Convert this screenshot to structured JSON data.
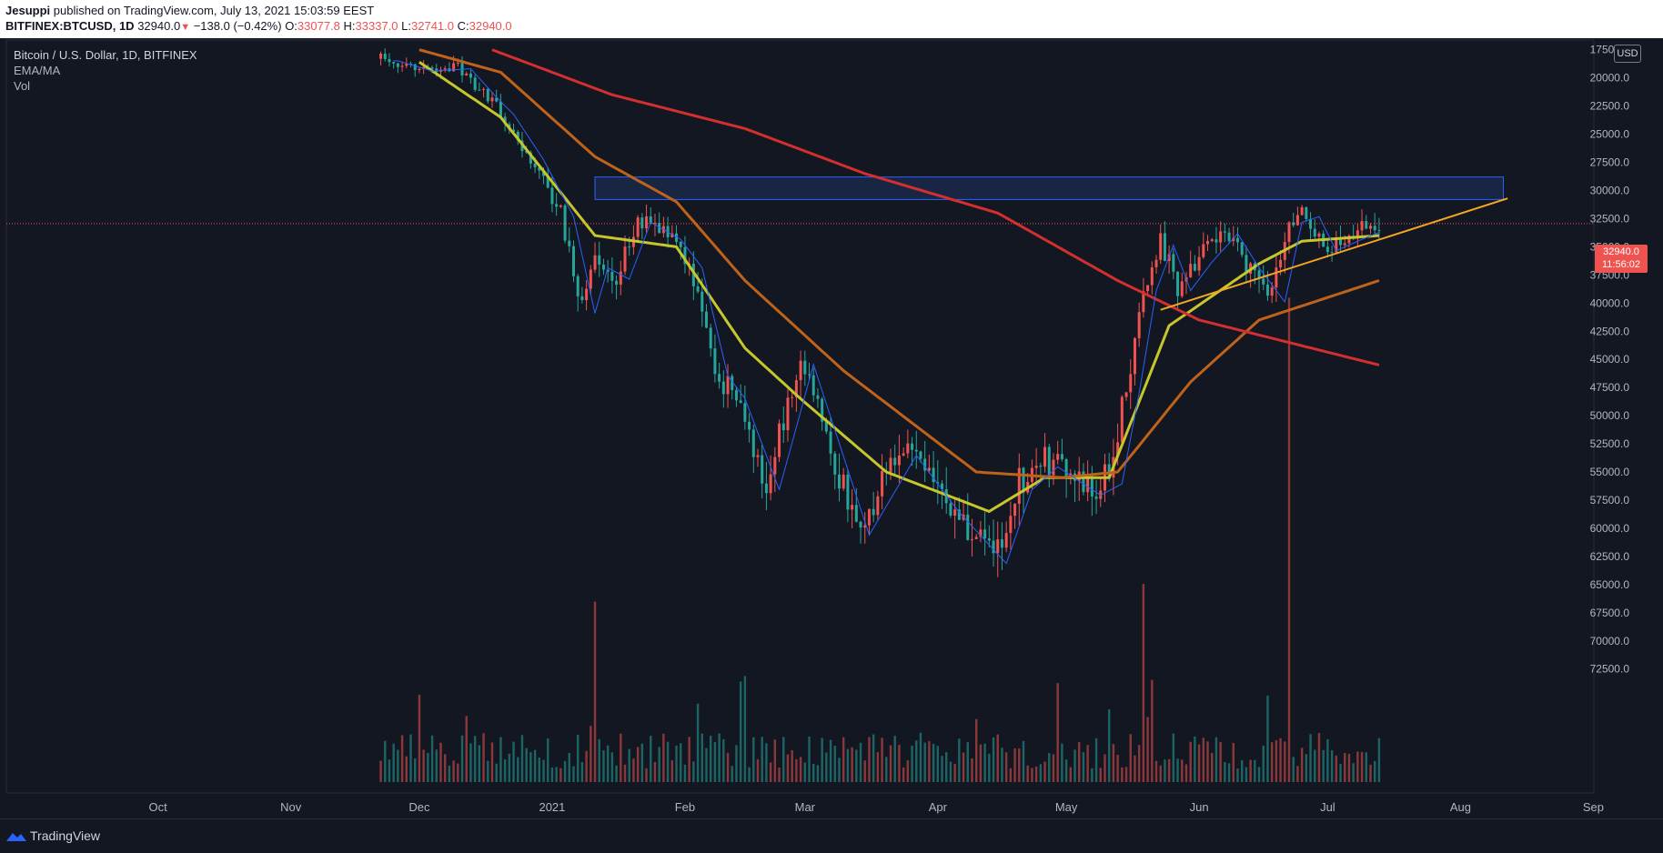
{
  "header": {
    "author": "Jesuppi",
    "published_text": "published on TradingView.com, July 13, 2021 15:03:59 EEST",
    "symbol": "BITFINEX:BTCUSD, 1D",
    "last_price": "32940.0",
    "change_text": "−138.0 (−0.42%)",
    "o_label": "O:",
    "o_value": "33077.8",
    "h_label": "H:",
    "h_value": "33337.0",
    "l_label": "L:",
    "l_value": "32741.0",
    "c_label": "C:",
    "c_value": "32940.0"
  },
  "legend": {
    "title": "Bitcoin / U.S. Dollar, 1D, BITFINEX",
    "indicator_1": "EMA/MA",
    "indicator_2": "Vol"
  },
  "axis": {
    "currency_badge": "USD"
  },
  "price_tag": {
    "price": "32940.0",
    "countdown": "11:56:02"
  },
  "footer": {
    "brand": "TradingView"
  },
  "colors": {
    "background": "#131722",
    "up": "#26a69a",
    "down": "#ef5350",
    "ema_fast": "#2962ff",
    "ema_yellow": "#c6c72b",
    "ma_orange": "#c0631a",
    "ma_red": "#d32f2f",
    "trendline": "#f6a623",
    "zone": "#1e3a6e"
  },
  "chart_data": {
    "type": "candlestick",
    "axis_inverted": true,
    "price_axis_ticks": [
      17500,
      20000,
      22500,
      25000,
      27500,
      30000,
      32500,
      35000,
      37500,
      40000,
      42500,
      45000,
      47500,
      50000,
      52500,
      55000,
      57500,
      60000,
      62500,
      65000,
      67500,
      70000,
      72500
    ],
    "ylim_top_to_bottom": [
      17200,
      74300
    ],
    "x_labels": [
      "Oct",
      "Nov",
      "Dec",
      "2021",
      "Feb",
      "Mar",
      "Apr",
      "May",
      "Jun",
      "Jul",
      "Aug",
      "Sep"
    ],
    "close_path": [
      [
        "2020-11-23",
        18300
      ],
      [
        "2020-12-01",
        19200
      ],
      [
        "2020-12-10",
        19000
      ],
      [
        "2020-12-16",
        21500
      ],
      [
        "2020-12-20",
        23000
      ],
      [
        "2020-12-27",
        27000
      ],
      [
        "2021-01-03",
        32000
      ],
      [
        "2021-01-08",
        40500
      ],
      [
        "2021-01-11",
        36500
      ],
      [
        "2021-01-16",
        37500
      ],
      [
        "2021-01-21",
        32500
      ],
      [
        "2021-01-28",
        34000
      ],
      [
        "2021-02-02",
        36500
      ],
      [
        "2021-02-08",
        46000
      ],
      [
        "2021-02-12",
        48000
      ],
      [
        "2021-02-20",
        56000
      ],
      [
        "2021-02-28",
        45000
      ],
      [
        "2021-03-13",
        60000
      ],
      [
        "2021-03-24",
        53000
      ],
      [
        "2021-04-03",
        58000
      ],
      [
        "2021-04-14",
        62500
      ],
      [
        "2021-04-20",
        56000
      ],
      [
        "2021-04-26",
        54000
      ],
      [
        "2021-05-06",
        56500
      ],
      [
        "2021-05-11",
        55500
      ],
      [
        "2021-05-15",
        47500
      ],
      [
        "2021-05-19",
        38500
      ],
      [
        "2021-05-23",
        34500
      ],
      [
        "2021-05-27",
        38500
      ],
      [
        "2021-06-01",
        36000
      ],
      [
        "2021-06-07",
        33500
      ],
      [
        "2021-06-12",
        36500
      ],
      [
        "2021-06-18",
        39500
      ],
      [
        "2021-06-22",
        32500
      ],
      [
        "2021-06-26",
        32000
      ],
      [
        "2021-06-30",
        35000
      ],
      [
        "2021-07-06",
        34000
      ],
      [
        "2021-07-13",
        32940
      ]
    ],
    "volume_peaks": [
      [
        "2021-01-11",
        67000
      ],
      [
        "2021-05-19",
        70000
      ],
      [
        "2021-06-22",
        40000
      ]
    ],
    "moving_averages": [
      {
        "points": [
          [
            "2020-12-01",
            18600
          ],
          [
            "2020-12-20",
            23500
          ],
          [
            "2021-01-11",
            34000
          ],
          [
            "2021-01-30",
            35000
          ],
          [
            "2021-02-15",
            44000
          ],
          [
            "2021-02-28",
            48500
          ],
          [
            "2021-03-20",
            55000
          ],
          [
            "2021-04-13",
            58500
          ],
          [
            "2021-04-26",
            55500
          ],
          [
            "2021-05-11",
            55500
          ],
          [
            "2021-05-25",
            42000
          ],
          [
            "2021-06-15",
            36500
          ],
          [
            "2021-06-25",
            34500
          ],
          [
            "2021-07-13",
            34000
          ]
        ]
      },
      {
        "points": [
          [
            "2020-12-01",
            17500
          ],
          [
            "2020-12-20",
            19500
          ],
          [
            "2021-01-11",
            27000
          ],
          [
            "2021-01-30",
            31000
          ],
          [
            "2021-02-15",
            38000
          ],
          [
            "2021-03-10",
            46000
          ],
          [
            "2021-04-10",
            55000
          ],
          [
            "2021-04-30",
            55500
          ],
          [
            "2021-05-13",
            55000
          ],
          [
            "2021-05-30",
            47000
          ],
          [
            "2021-06-15",
            41500
          ],
          [
            "2021-07-13",
            38000
          ]
        ]
      },
      {
        "points": [
          [
            "2020-12-18",
            17500
          ],
          [
            "2021-01-15",
            21500
          ],
          [
            "2021-02-15",
            24500
          ],
          [
            "2021-03-15",
            28500
          ],
          [
            "2021-04-15",
            32000
          ],
          [
            "2021-05-13",
            38000
          ],
          [
            "2021-06-01",
            41500
          ],
          [
            "2021-07-13",
            45500
          ]
        ]
      }
    ],
    "resistance_zone": {
      "x_start": "2021-01-11",
      "x_end": "2021-08-11",
      "price_low": 30800,
      "price_high": 28800
    },
    "trendline": {
      "start": [
        "2021-05-23",
        40600
      ],
      "end": [
        "2021-08-12",
        30700
      ]
    }
  }
}
